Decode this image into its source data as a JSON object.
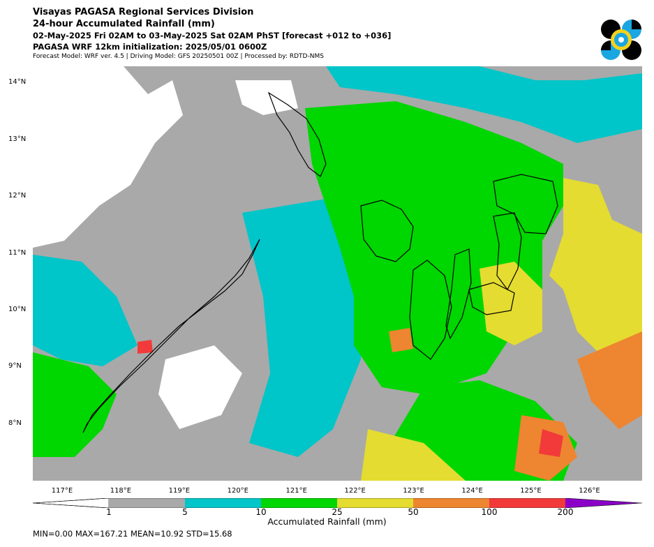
{
  "header": {
    "line1": "Visayas PAGASA Regional Services Division",
    "line2": "24-hour Accumulated Rainfall (mm)",
    "line3": "02-May-2025 Fri 02AM to 03-May-2025 Sat 02AM PhST [forecast +012 to +036]",
    "line4": "PAGASA WRF 12km initialization: 2025/05/01 0600Z",
    "line5": "Forecast Model: WRF ver. 4.5 | Driving Model: GFS 20250501 00Z | Processed by: RDTD-NMS"
  },
  "map": {
    "lat_labels": [
      "14°N",
      "13°N",
      "12°N",
      "11°N",
      "10°N",
      "9°N",
      "8°N"
    ],
    "lon_labels": [
      "117°E",
      "118°E",
      "119°E",
      "120°E",
      "121°E",
      "122°E",
      "123°E",
      "124°E",
      "125°E",
      "126°E"
    ]
  },
  "colorbar": {
    "ticks": [
      "1",
      "5",
      "10",
      "25",
      "50",
      "100",
      "200"
    ],
    "colors": [
      "#ffffff",
      "#a9a9a9",
      "#00c5c9",
      "#00d600",
      "#e4dc30",
      "#ee8530",
      "#f23a3a",
      "#8a00c8"
    ],
    "title": "Accumulated Rainfall (mm)"
  },
  "stats": "MIN=0.00   MAX=167.21   MEAN=10.92   STD=15.68"
}
